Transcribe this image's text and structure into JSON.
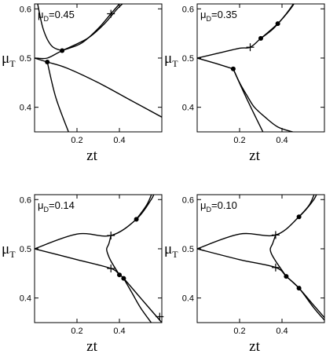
{
  "chart_data": [
    {
      "type": "line",
      "panel_label": {
        "symbol": "μ",
        "sub": "D",
        "text": "=0.45"
      },
      "xlabel": "zt",
      "ylabel": {
        "symbol": "μ",
        "sub": "T"
      },
      "xlim": [
        0,
        0.6
      ],
      "ylim": [
        0.35,
        0.61
      ],
      "xticks": [
        0.2,
        0.4
      ],
      "yticks": [
        0.4,
        0.5,
        0.6
      ],
      "series": [
        {
          "values": [
            [
              0,
              0.5
            ],
            [
              0.06,
              0.5
            ],
            [
              0.13,
              0.515
            ],
            [
              0.22,
              0.53
            ],
            [
              0.3,
              0.56
            ],
            [
              0.36,
              0.59
            ],
            [
              0.42,
              0.62
            ]
          ]
        },
        {
          "values": [
            [
              0.13,
              0.515
            ],
            [
              0.25,
              0.54
            ],
            [
              0.33,
              0.57
            ],
            [
              0.39,
              0.6
            ],
            [
              0.44,
              0.62
            ]
          ]
        },
        {
          "values": [
            [
              0.01,
              0.62
            ],
            [
              0.04,
              0.56
            ],
            [
              0.08,
              0.525
            ],
            [
              0.13,
              0.515
            ]
          ]
        },
        {
          "values": [
            [
              0,
              0.5
            ],
            [
              0.06,
              0.492
            ],
            [
              0.15,
              0.48
            ],
            [
              0.3,
              0.45
            ],
            [
              0.45,
              0.415
            ],
            [
              0.6,
              0.38
            ]
          ]
        },
        {
          "values": [
            [
              0.06,
              0.492
            ],
            [
              0.1,
              0.42
            ],
            [
              0.16,
              0.35
            ]
          ]
        }
      ],
      "dots": [
        [
          0.13,
          0.515
        ],
        [
          0.06,
          0.492
        ]
      ],
      "crosses": [
        [
          0.36,
          0.59
        ]
      ]
    },
    {
      "type": "line",
      "panel_label": {
        "symbol": "μ",
        "sub": "D",
        "text": "=0.35"
      },
      "xlabel": "zt",
      "ylabel": {
        "symbol": "μ",
        "sub": "T"
      },
      "xlim": [
        0,
        0.6
      ],
      "ylim": [
        0.35,
        0.61
      ],
      "xticks": [
        0.2,
        0.4
      ],
      "yticks": [
        0.4,
        0.5,
        0.6
      ],
      "series": [
        {
          "values": [
            [
              0,
              0.5
            ],
            [
              0.1,
              0.51
            ],
            [
              0.2,
              0.52
            ],
            [
              0.25,
              0.522
            ],
            [
              0.3,
              0.54
            ],
            [
              0.38,
              0.57
            ],
            [
              0.44,
              0.6
            ],
            [
              0.47,
              0.62
            ]
          ]
        },
        {
          "values": [
            [
              0.3,
              0.54
            ],
            [
              0.36,
              0.56
            ],
            [
              0.42,
              0.59
            ],
            [
              0.47,
              0.62
            ]
          ]
        },
        {
          "values": [
            [
              0,
              0.5
            ],
            [
              0.08,
              0.49
            ],
            [
              0.17,
              0.478
            ]
          ]
        },
        {
          "values": [
            [
              0.17,
              0.478
            ],
            [
              0.2,
              0.45
            ],
            [
              0.24,
              0.42
            ],
            [
              0.27,
              0.4
            ],
            [
              0.32,
              0.38
            ],
            [
              0.38,
              0.36
            ],
            [
              0.45,
              0.35
            ]
          ]
        },
        {
          "values": [
            [
              0.17,
              0.478
            ],
            [
              0.22,
              0.43
            ],
            [
              0.27,
              0.385
            ],
            [
              0.31,
              0.35
            ]
          ]
        }
      ],
      "dots": [
        [
          0.3,
          0.54
        ],
        [
          0.38,
          0.57
        ],
        [
          0.17,
          0.478
        ]
      ],
      "crosses": [
        [
          0.25,
          0.522
        ]
      ]
    },
    {
      "type": "line",
      "panel_label": {
        "symbol": "μ",
        "sub": "D",
        "text": "=0.14"
      },
      "xlabel": "zt",
      "ylabel": {
        "symbol": "μ",
        "sub": "T"
      },
      "xlim": [
        0,
        0.6
      ],
      "ylim": [
        0.35,
        0.61
      ],
      "xticks": [
        0.2,
        0.4
      ],
      "yticks": [
        0.4,
        0.5,
        0.6
      ],
      "series": [
        {
          "values": [
            [
              0,
              0.5
            ],
            [
              0.2,
              0.53
            ],
            [
              0.36,
              0.527
            ],
            [
              0.48,
              0.56
            ],
            [
              0.55,
              0.6
            ],
            [
              0.57,
              0.62
            ]
          ]
        },
        {
          "values": [
            [
              0.48,
              0.56
            ],
            [
              0.53,
              0.59
            ],
            [
              0.56,
              0.62
            ]
          ]
        },
        {
          "values": [
            [
              0,
              0.5
            ],
            [
              0.2,
              0.478
            ],
            [
              0.36,
              0.46
            ],
            [
              0.4,
              0.447
            ],
            [
              0.42,
              0.44
            ],
            [
              0.5,
              0.4
            ],
            [
              0.6,
              0.35
            ]
          ]
        },
        {
          "values": [
            [
              0.42,
              0.44
            ],
            [
              0.46,
              0.41
            ],
            [
              0.5,
              0.38
            ],
            [
              0.55,
              0.35
            ]
          ]
        },
        {
          "values": [
            [
              0.36,
              0.527
            ],
            [
              0.35,
              0.51
            ],
            [
              0.34,
              0.5
            ],
            [
              0.345,
              0.49
            ],
            [
              0.36,
              0.475
            ],
            [
              0.4,
              0.447
            ]
          ]
        }
      ],
      "dots": [
        [
          0.48,
          0.56
        ],
        [
          0.4,
          0.447
        ],
        [
          0.42,
          0.44
        ]
      ],
      "crosses": [
        [
          0.36,
          0.527
        ],
        [
          0.36,
          0.46
        ],
        [
          0.59,
          0.362
        ]
      ]
    },
    {
      "type": "line",
      "panel_label": {
        "symbol": "μ",
        "sub": "D",
        "text": "=0.10"
      },
      "xlabel": "zt",
      "ylabel": {
        "symbol": "μ",
        "sub": "T"
      },
      "xlim": [
        0,
        0.6
      ],
      "ylim": [
        0.35,
        0.61
      ],
      "xticks": [
        0.2,
        0.4
      ],
      "yticks": [
        0.4,
        0.5,
        0.6
      ],
      "series": [
        {
          "values": [
            [
              0,
              0.5
            ],
            [
              0.2,
              0.53
            ],
            [
              0.37,
              0.528
            ],
            [
              0.48,
              0.565
            ],
            [
              0.55,
              0.6
            ],
            [
              0.57,
              0.62
            ]
          ]
        },
        {
          "values": [
            [
              0.48,
              0.565
            ],
            [
              0.53,
              0.59
            ],
            [
              0.56,
              0.62
            ]
          ]
        },
        {
          "values": [
            [
              0,
              0.5
            ],
            [
              0.2,
              0.478
            ],
            [
              0.37,
              0.462
            ],
            [
              0.42,
              0.444
            ],
            [
              0.48,
              0.42
            ],
            [
              0.55,
              0.38
            ],
            [
              0.6,
              0.355
            ]
          ]
        },
        {
          "values": [
            [
              0.42,
              0.444
            ],
            [
              0.48,
              0.42
            ],
            [
              0.54,
              0.39
            ],
            [
              0.6,
              0.36
            ]
          ]
        },
        {
          "values": [
            [
              0.37,
              0.528
            ],
            [
              0.355,
              0.51
            ],
            [
              0.345,
              0.5
            ],
            [
              0.35,
              0.49
            ],
            [
              0.37,
              0.475
            ],
            [
              0.42,
              0.444
            ]
          ]
        }
      ],
      "dots": [
        [
          0.48,
          0.565
        ],
        [
          0.42,
          0.444
        ],
        [
          0.48,
          0.42
        ]
      ],
      "crosses": [
        [
          0.37,
          0.528
        ],
        [
          0.37,
          0.462
        ]
      ]
    }
  ]
}
